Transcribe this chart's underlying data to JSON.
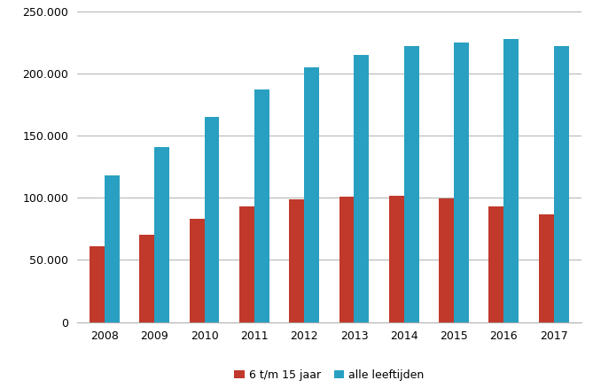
{
  "years": [
    2008,
    2009,
    2010,
    2011,
    2012,
    2013,
    2014,
    2015,
    2016,
    2017
  ],
  "series_6_15": [
    61000,
    70000,
    83000,
    93000,
    99000,
    101000,
    101500,
    99500,
    93000,
    87000
  ],
  "series_all": [
    118000,
    141000,
    165000,
    187000,
    205000,
    215000,
    222000,
    225000,
    228000,
    222000
  ],
  "color_6_15": "#c0392b",
  "color_all": "#29a0c1",
  "ylim": [
    0,
    250000
  ],
  "yticks": [
    0,
    50000,
    100000,
    150000,
    200000,
    250000
  ],
  "legend_label_6_15": "6 t/m 15 jaar",
  "legend_label_all": "alle leeftijden",
  "bar_width": 0.3,
  "grid_color": "#b0b0b0",
  "background_color": "#ffffff"
}
